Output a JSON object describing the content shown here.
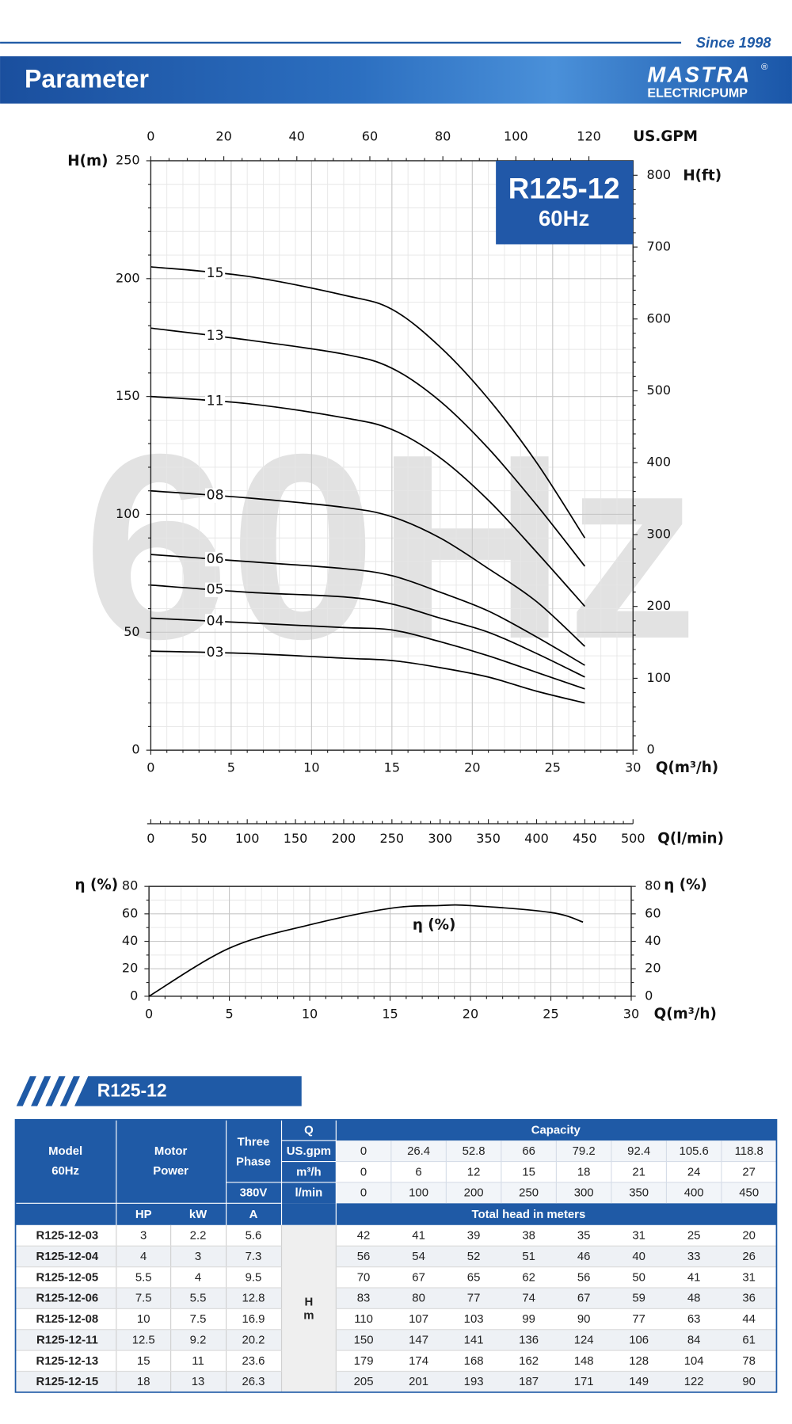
{
  "header": {
    "since": "Since 1998",
    "title": "Parameter",
    "logo": "MASTRA",
    "registered": "®",
    "logo_sub": "ELECTRICPUMP"
  },
  "chart_data": [
    {
      "type": "line",
      "model": "R125-12",
      "frequency": "60Hz",
      "watermark": "60Hz",
      "x_label": "Q(m³/h)",
      "y_label": "H(m)",
      "y2_label": "H(ft)",
      "x2_label": "US.GPM",
      "x3_label": "Q(l/min)",
      "x": [
        0,
        6,
        12,
        15,
        18,
        21,
        24,
        27
      ],
      "series": [
        {
          "name": "15",
          "color": "#000000",
          "values": [
            205,
            201,
            193,
            187,
            171,
            149,
            122,
            90
          ]
        },
        {
          "name": "13",
          "color": "#000000",
          "values": [
            179,
            174,
            168,
            162,
            148,
            128,
            104,
            78
          ]
        },
        {
          "name": "11",
          "color": "#000000",
          "values": [
            150,
            147,
            141,
            136,
            124,
            106,
            84,
            61
          ]
        },
        {
          "name": "08",
          "color": "#000000",
          "values": [
            110,
            107,
            103,
            99,
            90,
            77,
            63,
            44
          ]
        },
        {
          "name": "06",
          "color": "#000000",
          "values": [
            83,
            80,
            77,
            74,
            67,
            59,
            48,
            36
          ]
        },
        {
          "name": "05",
          "color": "#000000",
          "values": [
            70,
            67,
            65,
            62,
            56,
            50,
            41,
            31
          ]
        },
        {
          "name": "04",
          "color": "#000000",
          "values": [
            56,
            54,
            52,
            51,
            46,
            40,
            33,
            26
          ]
        },
        {
          "name": "03",
          "color": "#000000",
          "values": [
            42,
            41,
            39,
            38,
            35,
            31,
            25,
            20
          ]
        }
      ],
      "xlim": [
        0,
        30
      ],
      "xticks": [
        0,
        5,
        10,
        15,
        20,
        25,
        30
      ],
      "ylim": [
        0,
        250
      ],
      "yticks": [
        0,
        50,
        100,
        150,
        200,
        250
      ],
      "y2lim": [
        0,
        820.2
      ],
      "y2ticks": [
        0,
        100,
        200,
        300,
        400,
        500,
        600,
        700,
        800
      ],
      "x2lim": [
        0,
        132.09
      ],
      "x2ticks": [
        0,
        20,
        40,
        60,
        80,
        100,
        120
      ],
      "x3lim": [
        0,
        500
      ],
      "x3ticks": [
        0,
        50,
        100,
        150,
        200,
        250,
        300,
        350,
        400,
        450,
        500
      ],
      "grid": true
    },
    {
      "type": "line",
      "x_label": "Q(m³/h)",
      "y_label": "η (%)",
      "y2_label": "η (%)",
      "x": [
        0,
        5,
        10,
        15,
        18,
        20,
        25,
        27
      ],
      "series": [
        {
          "name": "η (%)",
          "color": "#000000",
          "values": [
            0,
            35,
            52,
            64,
            66,
            66,
            61,
            54
          ]
        }
      ],
      "xlim": [
        0,
        30
      ],
      "xticks": [
        0,
        5,
        10,
        15,
        20,
        25,
        30
      ],
      "ylim": [
        0,
        80
      ],
      "yticks": [
        0,
        20,
        40,
        60,
        80
      ],
      "y2lim": [
        0,
        80
      ],
      "y2ticks": [
        0,
        20,
        40,
        60,
        80
      ],
      "grid": true
    }
  ],
  "table": {
    "title": "R125-12",
    "head": {
      "model": [
        "Model",
        "60Hz"
      ],
      "motor": [
        "Motor",
        "Power"
      ],
      "phase": [
        "Three",
        "Phase"
      ],
      "q": "Q",
      "capacity": "Capacity",
      "voltage": "380V",
      "units": [
        "US.gpm",
        "m³/h",
        "l/min"
      ],
      "hp": "HP",
      "kw": "kW",
      "a": "A",
      "total_head": "Total head in meters",
      "h_unit": [
        "H",
        "m"
      ]
    },
    "flow": [
      [
        0,
        26.4,
        52.8,
        66,
        79.2,
        92.4,
        105.6,
        118.8
      ],
      [
        0,
        6,
        12,
        15,
        18,
        21,
        24,
        27
      ],
      [
        0,
        100,
        200,
        250,
        300,
        350,
        400,
        450
      ]
    ],
    "rows": [
      {
        "model": "R125-12-03",
        "hp": 3,
        "kw": 2.2,
        "a": 5.6,
        "head": [
          42,
          41,
          39,
          38,
          35,
          31,
          25,
          20
        ]
      },
      {
        "model": "R125-12-04",
        "hp": 4,
        "kw": 3,
        "a": 7.3,
        "head": [
          56,
          54,
          52,
          51,
          46,
          40,
          33,
          26
        ]
      },
      {
        "model": "R125-12-05",
        "hp": 5.5,
        "kw": 4,
        "a": 9.5,
        "head": [
          70,
          67,
          65,
          62,
          56,
          50,
          41,
          31
        ]
      },
      {
        "model": "R125-12-06",
        "hp": 7.5,
        "kw": 5.5,
        "a": 12.8,
        "head": [
          83,
          80,
          77,
          74,
          67,
          59,
          48,
          36
        ]
      },
      {
        "model": "R125-12-08",
        "hp": 10,
        "kw": 7.5,
        "a": 16.9,
        "head": [
          110,
          107,
          103,
          99,
          90,
          77,
          63,
          44
        ]
      },
      {
        "model": "R125-12-11",
        "hp": 12.5,
        "kw": 9.2,
        "a": 20.2,
        "head": [
          150,
          147,
          141,
          136,
          124,
          106,
          84,
          61
        ]
      },
      {
        "model": "R125-12-13",
        "hp": 15,
        "kw": 11,
        "a": 23.6,
        "head": [
          179,
          174,
          168,
          162,
          148,
          128,
          104,
          78
        ]
      },
      {
        "model": "R125-12-15",
        "hp": 18,
        "kw": 13,
        "a": 26.3,
        "head": [
          205,
          201,
          193,
          187,
          171,
          149,
          122,
          90
        ]
      }
    ]
  }
}
